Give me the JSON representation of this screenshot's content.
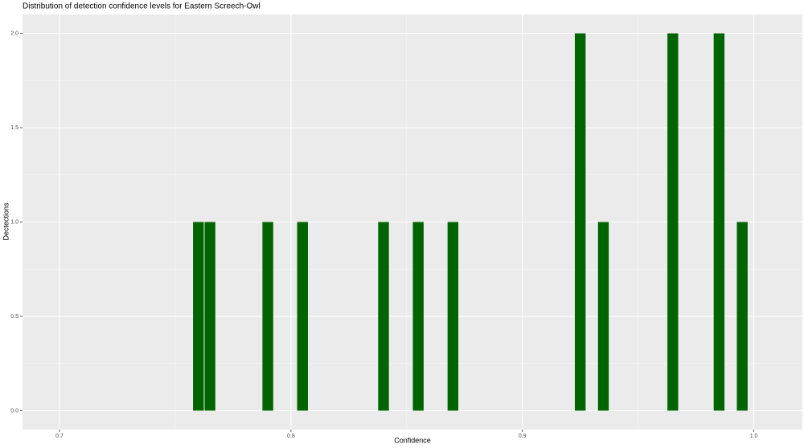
{
  "chart_data": {
    "type": "histogram",
    "title": "Distribution of detection confidence levels for Eastern Screech-Owl",
    "x_label": "Confidence",
    "y_label": "Dectections",
    "bins": [
      0.7575,
      0.7625,
      0.7675,
      0.7725,
      0.7775,
      0.7825,
      0.7875,
      0.7925,
      0.7975,
      0.8025,
      0.8075,
      0.8125,
      0.8175,
      0.8225,
      0.8275,
      0.8325,
      0.8375,
      0.8425,
      0.8475,
      0.8525,
      0.8575,
      0.8625,
      0.8675,
      0.8725,
      0.8775,
      0.8825,
      0.8875,
      0.8925,
      0.8975,
      0.9025,
      0.9075,
      0.9125,
      0.9175,
      0.9225,
      0.9275,
      0.9325,
      0.9375,
      0.9425,
      0.9475,
      0.9525,
      0.9575,
      0.9625,
      0.9675,
      0.9725,
      0.9775,
      0.9825,
      0.9875,
      0.9925,
      0.9975
    ],
    "values": [
      1,
      1,
      0,
      0,
      0,
      0,
      1,
      0,
      0,
      1,
      0,
      0,
      0,
      0,
      0,
      0,
      1,
      0,
      0,
      1,
      0,
      0,
      1,
      0,
      0,
      0,
      0,
      0,
      0,
      0,
      0,
      0,
      0,
      2,
      0,
      1,
      0,
      0,
      0,
      0,
      0,
      2,
      0,
      0,
      0,
      2,
      0,
      1
    ],
    "color": "#006400",
    "xlim": [
      0.684,
      1.021
    ],
    "ylim": [
      -0.1,
      2.1
    ],
    "xticks": [
      0.7,
      0.8,
      0.9,
      {
        "value": 1.0,
        "label": "1.0"
      }
    ],
    "yticks": [
      {
        "value": 0,
        "label": "0.0"
      },
      0.5,
      {
        "value": 1,
        "label": "1.0"
      },
      1.5,
      {
        "value": 2,
        "label": "2.0"
      }
    ],
    "grid": true
  }
}
